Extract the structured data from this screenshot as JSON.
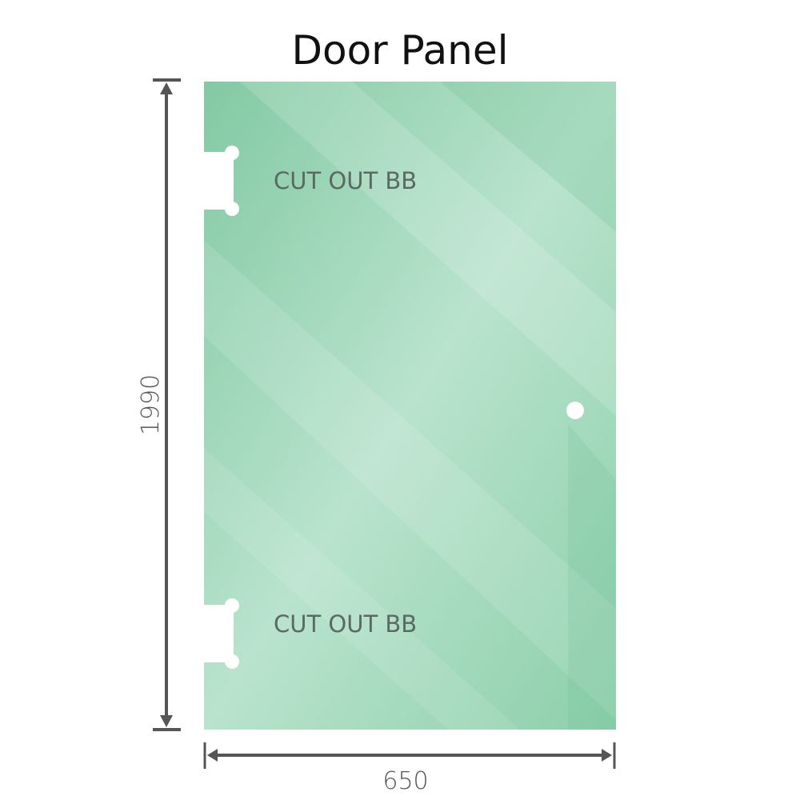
{
  "title": "Door Panel",
  "dimensions": {
    "height": "1990",
    "width": "650"
  },
  "cutouts": [
    {
      "label": "CUT OUT BB"
    },
    {
      "label": "CUT OUT BB"
    }
  ],
  "colors": {
    "glass": "#86cba6",
    "glass_light": "#bfe5d2",
    "dimension_line": "#555555"
  }
}
